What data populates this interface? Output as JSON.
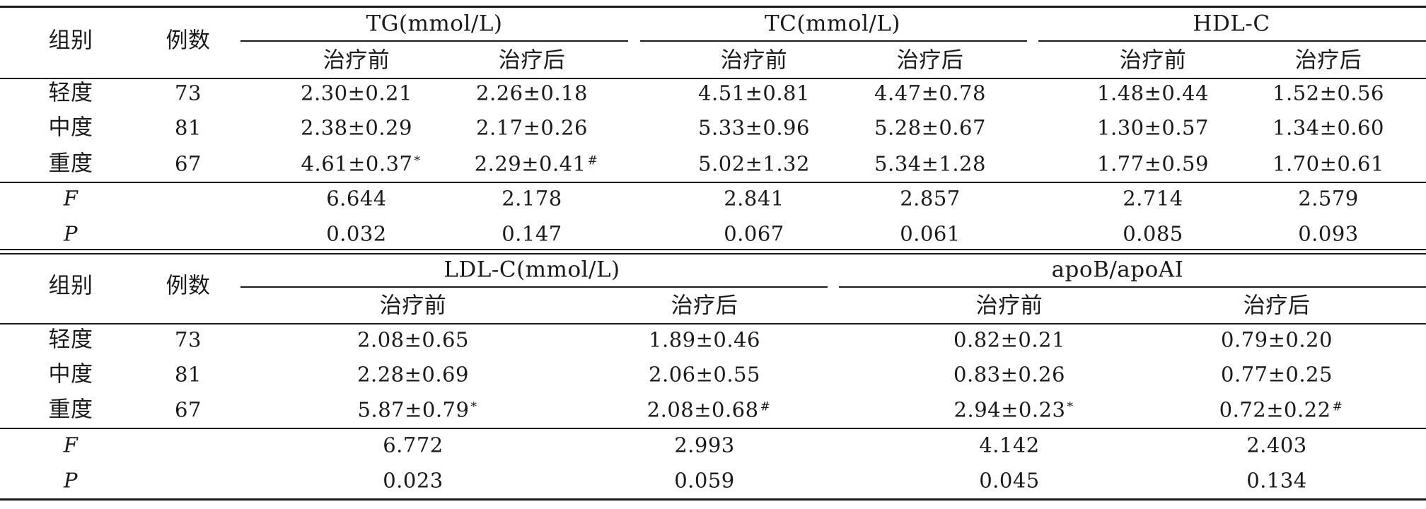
{
  "table1": {
    "header": {
      "group": "组别",
      "count": "例数",
      "tg": "TG(mmol/L)",
      "tc": "TC(mmol/L)",
      "hdl": "HDL-C",
      "before": "治疗前",
      "after": "治疗后"
    },
    "rows": [
      {
        "group": "轻度",
        "n": "73",
        "c": [
          "2.30±0.21",
          "2.26±0.18",
          "4.51±0.81",
          "4.47±0.78",
          "1.48±0.44",
          "1.52±0.56"
        ],
        "m": [
          "",
          "",
          "",
          "",
          "",
          ""
        ]
      },
      {
        "group": "中度",
        "n": "81",
        "c": [
          "2.38±0.29",
          "2.17±0.26",
          "5.33±0.96",
          "5.28±0.67",
          "1.30±0.57",
          "1.34±0.60"
        ],
        "m": [
          "",
          "",
          "",
          "",
          "",
          ""
        ]
      },
      {
        "group": "重度",
        "n": "67",
        "c": [
          "4.61±0.37",
          "2.29±0.41",
          "5.02±1.32",
          "5.34±1.28",
          "1.77±0.59",
          "1.70±0.61"
        ],
        "m": [
          "*",
          "#",
          "",
          "",
          "",
          ""
        ]
      }
    ],
    "stats": [
      {
        "label": "F",
        "c": [
          "6.644",
          "2.178",
          "2.841",
          "2.857",
          "2.714",
          "2.579"
        ]
      },
      {
        "label": "P",
        "c": [
          "0.032",
          "0.147",
          "0.067",
          "0.061",
          "0.085",
          "0.093"
        ]
      }
    ]
  },
  "table2": {
    "header": {
      "group": "组别",
      "count": "例数",
      "ldl": "LDL-C(mmol/L)",
      "apo": "apoB/apoAⅠ",
      "before": "治疗前",
      "after": "治疗后"
    },
    "rows": [
      {
        "group": "轻度",
        "n": "73",
        "c": [
          "2.08±0.65",
          "1.89±0.46",
          "0.82±0.21",
          "0.79±0.20"
        ],
        "m": [
          "",
          "",
          "",
          ""
        ]
      },
      {
        "group": "中度",
        "n": "81",
        "c": [
          "2.28±0.69",
          "2.06±0.55",
          "0.83±0.26",
          "0.77±0.25"
        ],
        "m": [
          "",
          "",
          "",
          ""
        ]
      },
      {
        "group": "重度",
        "n": "67",
        "c": [
          "5.87±0.79",
          "2.08±0.68",
          "2.94±0.23",
          "0.72±0.22"
        ],
        "m": [
          "*",
          "#",
          "*",
          "#"
        ]
      }
    ],
    "stats": [
      {
        "label": "F",
        "c": [
          "6.772",
          "2.993",
          "4.142",
          "2.403"
        ]
      },
      {
        "label": "P",
        "c": [
          "0.023",
          "0.059",
          "0.045",
          "0.134"
        ]
      }
    ]
  }
}
